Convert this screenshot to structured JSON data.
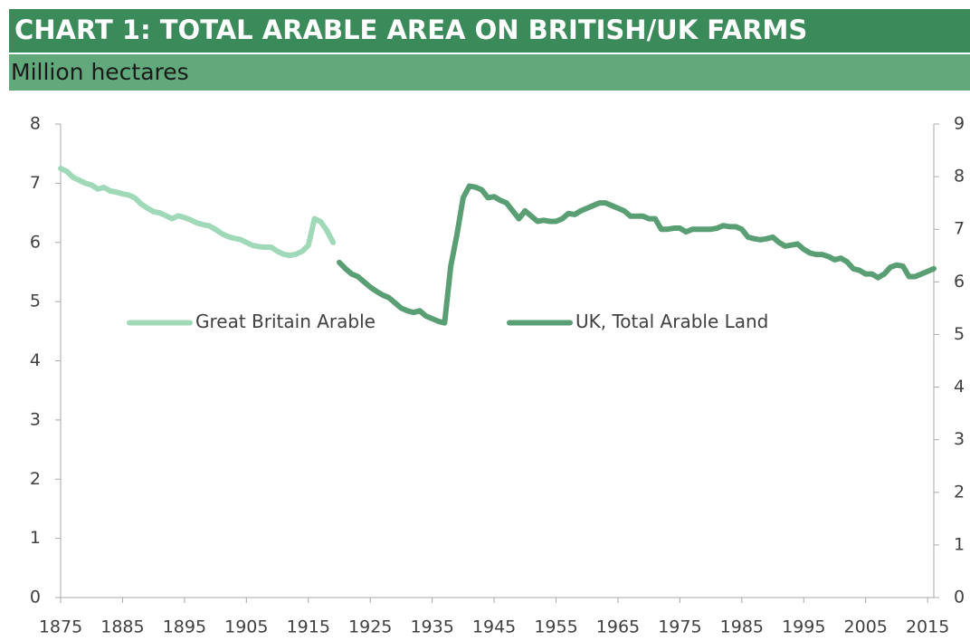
{
  "chart_data": {
    "type": "line",
    "title": "CHART 1: TOTAL ARABLE AREA ON BRITISH/UK FARMS",
    "subtitle": "Million hectares",
    "xlim": [
      1875,
      2016
    ],
    "xticks": [
      1875,
      1885,
      1895,
      1905,
      1915,
      1925,
      1935,
      1945,
      1955,
      1965,
      1975,
      1985,
      1995,
      2005,
      2015
    ],
    "ylim": [
      0,
      8
    ],
    "yticks": [
      0,
      1,
      2,
      3,
      4,
      5,
      6,
      7,
      8
    ],
    "y2lim": [
      0,
      9
    ],
    "y2ticks": [
      0,
      1,
      2,
      3,
      4,
      5,
      6,
      7,
      8,
      9
    ],
    "legend": "center",
    "series": [
      {
        "name": "Great Britain Arable",
        "color": "#9fd9b8",
        "axis": "y",
        "x": [
          1875,
          1876,
          1877,
          1878,
          1879,
          1880,
          1881,
          1882,
          1883,
          1884,
          1885,
          1886,
          1887,
          1888,
          1889,
          1890,
          1891,
          1892,
          1893,
          1894,
          1895,
          1896,
          1897,
          1898,
          1899,
          1900,
          1901,
          1902,
          1903,
          1904,
          1905,
          1906,
          1907,
          1908,
          1909,
          1910,
          1911,
          1912,
          1913,
          1914,
          1915,
          1916,
          1917,
          1918,
          1919
        ],
        "values": [
          7.25,
          7.2,
          7.1,
          7.05,
          7.0,
          6.97,
          6.9,
          6.93,
          6.87,
          6.85,
          6.82,
          6.8,
          6.75,
          6.65,
          6.58,
          6.52,
          6.5,
          6.45,
          6.4,
          6.45,
          6.42,
          6.38,
          6.33,
          6.3,
          6.28,
          6.22,
          6.15,
          6.1,
          6.07,
          6.05,
          6.0,
          5.95,
          5.93,
          5.92,
          5.92,
          5.85,
          5.8,
          5.78,
          5.8,
          5.85,
          5.95,
          6.4,
          6.35,
          6.2,
          6.0
        ]
      },
      {
        "name": "UK, Total Arable Land",
        "color": "#5a9e74",
        "axis": "y2",
        "x": [
          1920,
          1921,
          1922,
          1923,
          1924,
          1925,
          1926,
          1927,
          1928,
          1929,
          1930,
          1931,
          1932,
          1933,
          1934,
          1935,
          1936,
          1937,
          1938,
          1939,
          1940,
          1941,
          1942,
          1943,
          1944,
          1945,
          1946,
          1947,
          1948,
          1949,
          1950,
          1951,
          1952,
          1953,
          1954,
          1955,
          1956,
          1957,
          1958,
          1959,
          1960,
          1961,
          1962,
          1963,
          1964,
          1965,
          1966,
          1967,
          1968,
          1969,
          1970,
          1971,
          1972,
          1973,
          1974,
          1975,
          1976,
          1977,
          1978,
          1979,
          1980,
          1981,
          1982,
          1983,
          1984,
          1985,
          1986,
          1987,
          1988,
          1989,
          1990,
          1991,
          1992,
          1993,
          1994,
          1995,
          1996,
          1997,
          1998,
          1999,
          2000,
          2001,
          2002,
          2003,
          2004,
          2005,
          2006,
          2007,
          2008,
          2009,
          2010,
          2011,
          2012,
          2013,
          2014,
          2015,
          2016
        ],
        "values": [
          6.37,
          6.25,
          6.15,
          6.1,
          6.0,
          5.9,
          5.82,
          5.75,
          5.7,
          5.6,
          5.5,
          5.45,
          5.42,
          5.45,
          5.35,
          5.3,
          5.25,
          5.22,
          6.3,
          6.9,
          7.6,
          7.82,
          7.8,
          7.75,
          7.6,
          7.62,
          7.55,
          7.5,
          7.35,
          7.2,
          7.35,
          7.25,
          7.15,
          7.17,
          7.15,
          7.15,
          7.2,
          7.3,
          7.28,
          7.35,
          7.4,
          7.45,
          7.5,
          7.5,
          7.45,
          7.4,
          7.35,
          7.25,
          7.25,
          7.25,
          7.2,
          7.2,
          7.0,
          7.0,
          7.02,
          7.02,
          6.95,
          7.0,
          7.0,
          7.0,
          7.0,
          7.02,
          7.07,
          7.05,
          7.05,
          7.0,
          6.85,
          6.82,
          6.8,
          6.82,
          6.85,
          6.75,
          6.68,
          6.7,
          6.72,
          6.62,
          6.55,
          6.52,
          6.52,
          6.48,
          6.42,
          6.45,
          6.38,
          6.25,
          6.22,
          6.15,
          6.15,
          6.08,
          6.15,
          6.28,
          6.32,
          6.3,
          6.1,
          6.1,
          6.15,
          6.2,
          6.25
        ]
      }
    ]
  }
}
